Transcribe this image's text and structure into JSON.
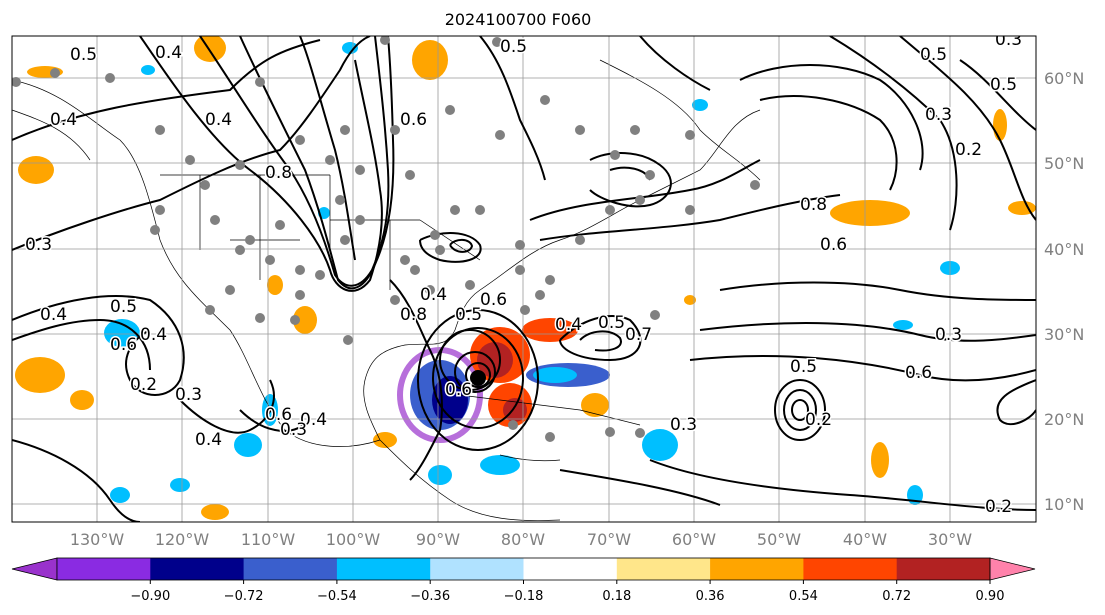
{
  "title": "2024100700 F060",
  "map": {
    "lon_labels": [
      "130°W",
      "120°W",
      "110°W",
      "100°W",
      "90°W",
      "80°W",
      "70°W",
      "60°W",
      "50°W",
      "40°W",
      "30°W"
    ],
    "lat_labels": [
      "60°N",
      "50°N",
      "40°N",
      "30°N",
      "20°N",
      "10°N"
    ],
    "contour_labels": [
      "0.5",
      "0.4",
      "0.4",
      "0.8",
      "0.6",
      "0.5",
      "0.4",
      "0.3",
      "0.5",
      "0.6",
      "0.4",
      "0.4",
      "0.2",
      "0.3",
      "0.4",
      "0.6",
      "0.4",
      "0.3",
      "0.4",
      "0.6",
      "0.5",
      "0.8",
      "0.6",
      "0.4",
      "0.5",
      "0.7",
      "0.3",
      "0.8",
      "0.6",
      "0.5",
      "0.3",
      "0.5",
      "0.3",
      "0.2",
      "0.5",
      "0.3",
      "0.6",
      "0.2",
      "0.2"
    ],
    "storm_marker": "hurricane center"
  },
  "colorbar": {
    "ticks": [
      "−0.90",
      "−0.72",
      "−0.54",
      "−0.36",
      "−0.18",
      "0.18",
      "0.36",
      "0.54",
      "0.72",
      "0.90"
    ],
    "colors": [
      "#9932cc",
      "#8a2be2",
      "#00008b",
      "#3a5fcd",
      "#00bfff",
      "#b0e2ff",
      "#ffffff",
      "#ffe68a",
      "#ffa500",
      "#ff4500",
      "#b22222",
      "#ff82ab"
    ]
  }
}
